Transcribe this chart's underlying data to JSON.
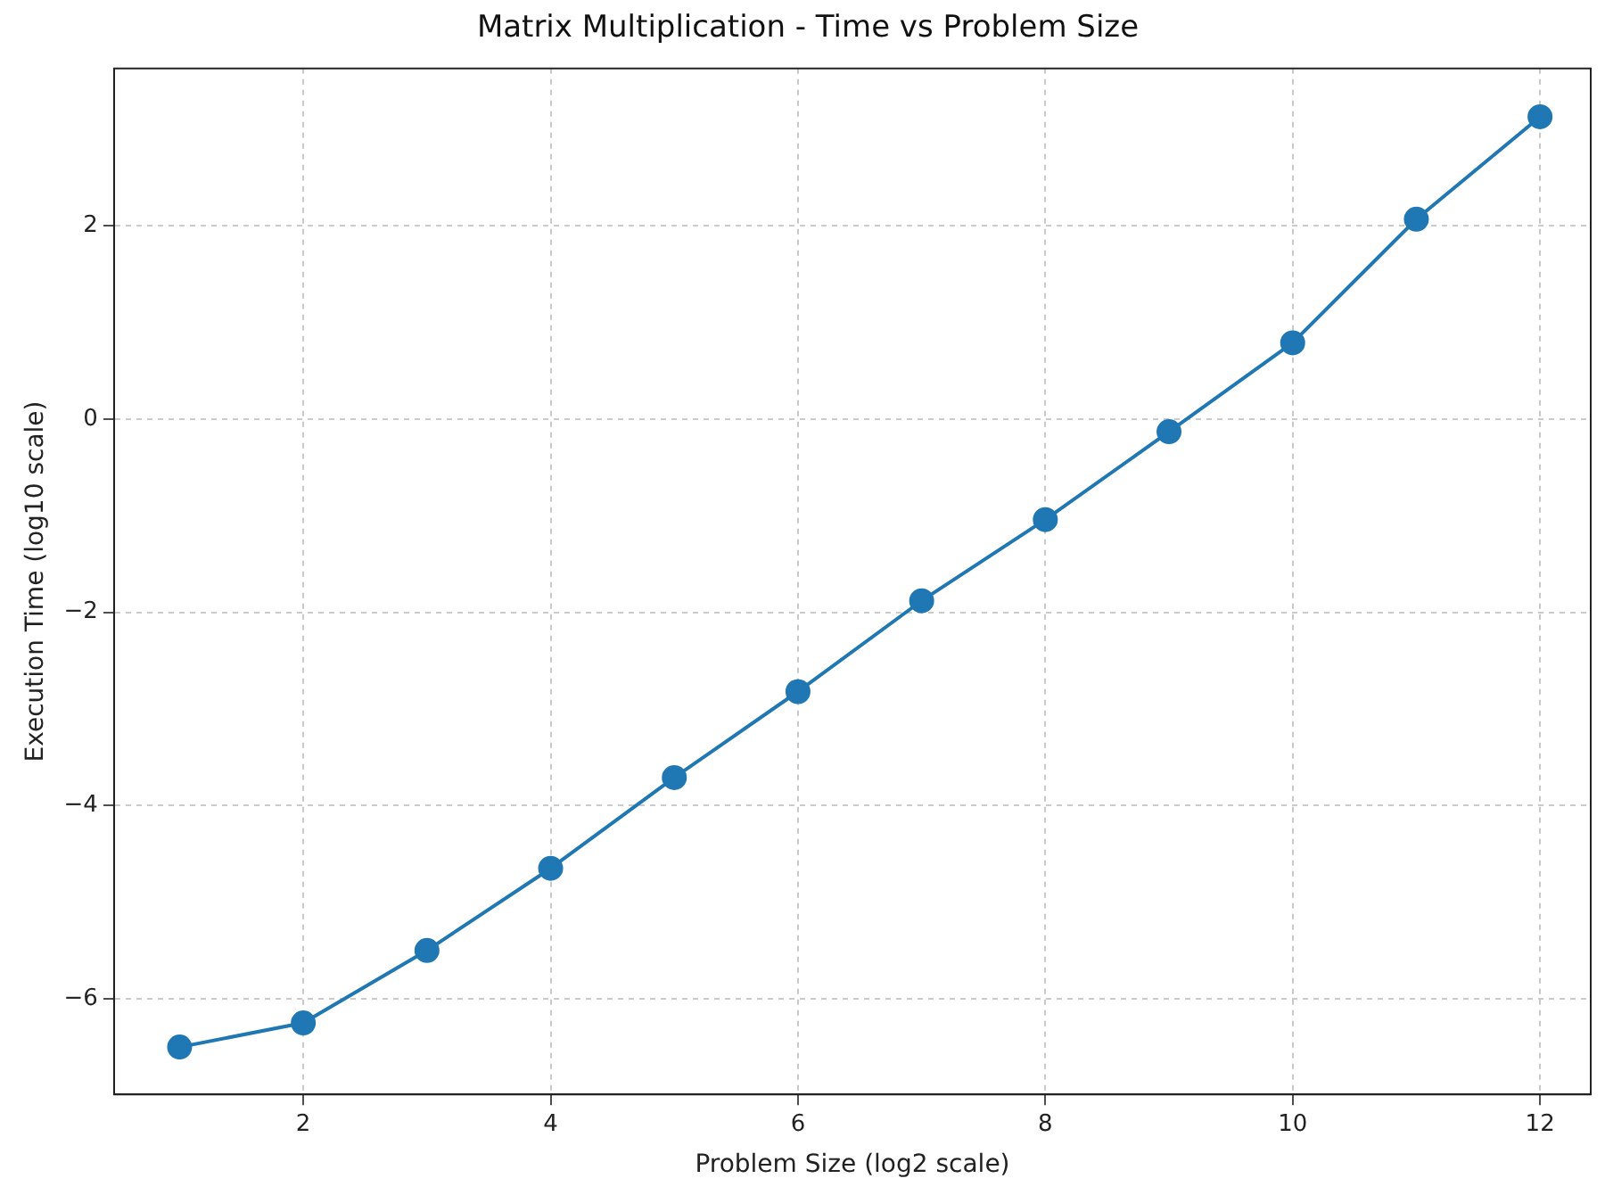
{
  "chart_data": {
    "type": "line",
    "title": "Matrix Multiplication - Time vs Problem Size",
    "xlabel": "Problem Size (log2 scale)",
    "ylabel": "Execution Time (log10 scale)",
    "x": [
      1,
      2,
      3,
      4,
      5,
      6,
      7,
      8,
      9,
      10,
      11,
      12
    ],
    "series": [
      {
        "color": "#1f77b4",
        "values": [
          -6.5,
          -6.25,
          -5.5,
          -4.65,
          -3.71,
          -2.82,
          -1.88,
          -1.04,
          -0.13,
          0.79,
          2.07,
          3.13
        ]
      }
    ],
    "xlim": [
      0.47,
      12.41
    ],
    "ylim": [
      -6.99,
      3.63
    ],
    "xticks": [
      2,
      4,
      6,
      8,
      10,
      12
    ],
    "yticks": [
      {
        "value": -6,
        "label": "−6"
      },
      {
        "value": -4,
        "label": "−4"
      },
      {
        "value": -2,
        "label": "−2"
      },
      0,
      2
    ],
    "grid": true,
    "legend": false,
    "marker": "circle",
    "line_style": "solid"
  }
}
